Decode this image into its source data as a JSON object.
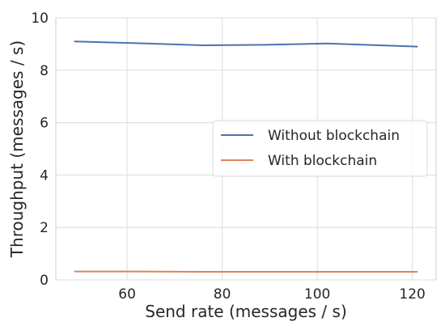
{
  "chart_data": {
    "type": "line",
    "title": "",
    "xlabel": "Send rate (messages / s)",
    "ylabel": "Throughput (messages / s)",
    "xlim": [
      45,
      125
    ],
    "ylim": [
      0,
      10
    ],
    "xticks": [
      60,
      80,
      100,
      120
    ],
    "yticks": [
      0,
      2,
      4,
      6,
      8,
      10
    ],
    "grid": true,
    "legend_position": "center-right",
    "series": [
      {
        "name": "Without blockchain",
        "color": "#4c72b0",
        "x": [
          49,
          62,
          76,
          89,
          102,
          121
        ],
        "y": [
          9.1,
          9.03,
          8.95,
          8.97,
          9.02,
          8.9
        ]
      },
      {
        "name": "With blockchain",
        "color": "#dd8452",
        "x": [
          49,
          62,
          76,
          89,
          102,
          121
        ],
        "y": [
          0.32,
          0.32,
          0.31,
          0.31,
          0.31,
          0.31
        ]
      }
    ]
  }
}
